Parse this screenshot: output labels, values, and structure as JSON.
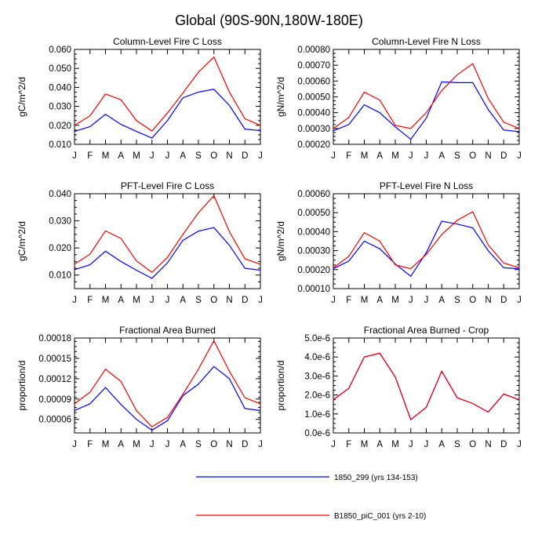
{
  "title": "Global (90S-90N,180W-180E)",
  "months": [
    "J",
    "F",
    "M",
    "A",
    "M",
    "J",
    "J",
    "A",
    "S",
    "O",
    "N",
    "D",
    "J"
  ],
  "colors": {
    "series_a": "#0000ff",
    "series_b": "#ff0000",
    "frame": "#000000"
  },
  "legend": [
    {
      "name": "1850_299 (yrs 134-153)",
      "color": "#0000ff"
    },
    {
      "name": "B1850_piC_001 (yrs 2-10)",
      "color": "#ff0000"
    }
  ],
  "chart_data": [
    {
      "type": "line",
      "title": "Column-Level Fire C Loss",
      "ylabel": "gC/m^2/d",
      "ylim": [
        0.01,
        0.06
      ],
      "yticks": [
        0.01,
        0.02,
        0.03,
        0.04,
        0.05,
        0.06
      ],
      "ytick_labels": [
        "0.010",
        "0.020",
        "0.030",
        "0.040",
        "0.050",
        "0.060"
      ],
      "series": [
        {
          "name": "1850_299 (yrs 134-153)",
          "values": [
            0.0168,
            0.0193,
            0.0258,
            0.0205,
            0.0168,
            0.0133,
            0.0225,
            0.0345,
            0.0375,
            0.039,
            0.0305,
            0.018,
            0.0172
          ]
        },
        {
          "name": "B1850_piC_001 (yrs 2-10)",
          "values": [
            0.02,
            0.025,
            0.0365,
            0.0335,
            0.0225,
            0.017,
            0.0265,
            0.037,
            0.048,
            0.056,
            0.0375,
            0.0235,
            0.02
          ]
        }
      ]
    },
    {
      "type": "line",
      "title": "Column-Level Fire N Loss",
      "ylabel": "gN/m^2/d",
      "ylim": [
        0.0002,
        0.0008
      ],
      "yticks": [
        0.0002,
        0.0003,
        0.0004,
        0.0005,
        0.0006,
        0.0007,
        0.0008
      ],
      "ytick_labels": [
        "0.00020",
        "0.00030",
        "0.00040",
        "0.00050",
        "0.00060",
        "0.00070",
        "0.00080"
      ],
      "series": [
        {
          "name": "1850_299 (yrs 134-153)",
          "values": [
            0.000285,
            0.000325,
            0.00045,
            0.0004,
            0.00031,
            0.000232,
            0.000365,
            0.000595,
            0.00059,
            0.00059,
            0.00042,
            0.00029,
            0.00028
          ]
        },
        {
          "name": "B1850_piC_001 (yrs 2-10)",
          "values": [
            0.0003,
            0.00037,
            0.00053,
            0.00048,
            0.00032,
            0.0003,
            0.0004,
            0.00054,
            0.00064,
            0.00071,
            0.00049,
            0.00034,
            0.0003
          ]
        }
      ]
    },
    {
      "type": "line",
      "title": "PFT-Level Fire C Loss",
      "ylabel": "gC/m^2/d",
      "ylim": [
        0.005,
        0.04
      ],
      "yticks": [
        0.01,
        0.02,
        0.03,
        0.04
      ],
      "ytick_labels": [
        "0.010",
        "0.020",
        "0.030",
        "0.040"
      ],
      "series": [
        {
          "name": "1850_299 (yrs 134-153)",
          "values": [
            0.012,
            0.0138,
            0.0188,
            0.015,
            0.0118,
            0.0088,
            0.0145,
            0.0228,
            0.0262,
            0.0275,
            0.021,
            0.0125,
            0.0118
          ]
        },
        {
          "name": "B1850_piC_001 (yrs 2-10)",
          "values": [
            0.014,
            0.0177,
            0.0263,
            0.0235,
            0.0152,
            0.011,
            0.0165,
            0.025,
            0.033,
            0.0393,
            0.026,
            0.016,
            0.014
          ]
        }
      ]
    },
    {
      "type": "line",
      "title": "PFT-Level Fire N Loss",
      "ylabel": "gN/m^2/d",
      "ylim": [
        0.0001,
        0.0006
      ],
      "yticks": [
        0.0001,
        0.0002,
        0.0003,
        0.0004,
        0.0005,
        0.0006
      ],
      "ytick_labels": [
        "0.00010",
        "0.00020",
        "0.00030",
        "0.00040",
        "0.00050",
        "0.00060"
      ],
      "series": [
        {
          "name": "1850_299 (yrs 134-153)",
          "values": [
            0.000205,
            0.000245,
            0.00035,
            0.00031,
            0.00023,
            0.000165,
            0.00029,
            0.000455,
            0.00044,
            0.00042,
            0.0003,
            0.00021,
            0.000205
          ]
        },
        {
          "name": "B1850_piC_001 (yrs 2-10)",
          "values": [
            0.00021,
            0.00027,
            0.000395,
            0.00035,
            0.000225,
            0.000205,
            0.00028,
            0.000385,
            0.00046,
            0.000505,
            0.00033,
            0.000235,
            0.00021
          ]
        }
      ]
    },
    {
      "type": "line",
      "title": "Fractional Area Burned",
      "ylabel": "proportion/d",
      "ylim": [
        4e-05,
        0.00018
      ],
      "yticks": [
        6e-05,
        9e-05,
        0.00012,
        0.00015,
        0.00018
      ],
      "ytick_labels": [
        "0.00006",
        "0.00009",
        "0.00012",
        "0.00015",
        "0.00018"
      ],
      "series": [
        {
          "name": "1850_299 (yrs 134-153)",
          "values": [
            7.3e-05,
            8.3e-05,
            0.000107,
            8.2e-05,
            6e-05,
            4.4e-05,
            5.8e-05,
            9.5e-05,
            0.000112,
            0.000138,
            0.00012,
            7.6e-05,
            7.3e-05
          ]
        },
        {
          "name": "B1850_piC_001 (yrs 2-10)",
          "values": [
            8.3e-05,
            0.0001,
            0.000134,
            0.000116,
            7.3e-05,
            4.9e-05,
            6.3e-05,
            9.7e-05,
            0.000134,
            0.000176,
            0.000131,
            9.2e-05,
            8.3e-05
          ]
        }
      ]
    },
    {
      "type": "line",
      "title": "Fractional Area Burned - Crop",
      "ylabel": "proportion/d",
      "ylim": [
        0.0,
        5e-06
      ],
      "yticks": [
        0.0,
        1e-06,
        2e-06,
        3e-06,
        4e-06,
        5e-06
      ],
      "ytick_labels": [
        "0.0e-6",
        "1.0e-6",
        "2.0e-6",
        "3.0e-6",
        "4.0e-6",
        "5.0e-6"
      ],
      "series": [
        {
          "name": "1850_299 (yrs 134-153)",
          "values": [
            1.75e-06,
            2.35e-06,
            4e-06,
            4.2e-06,
            2.95e-06,
            7e-07,
            1.35e-06,
            3.25e-06,
            1.85e-06,
            1.55e-06,
            1.1e-06,
            2.05e-06,
            1.75e-06
          ]
        },
        {
          "name": "B1850_piC_001 (yrs 2-10)",
          "values": [
            1.75e-06,
            2.35e-06,
            4e-06,
            4.2e-06,
            2.95e-06,
            7e-07,
            1.35e-06,
            3.25e-06,
            1.85e-06,
            1.55e-06,
            1.1e-06,
            2.05e-06,
            1.75e-06
          ]
        }
      ]
    }
  ]
}
